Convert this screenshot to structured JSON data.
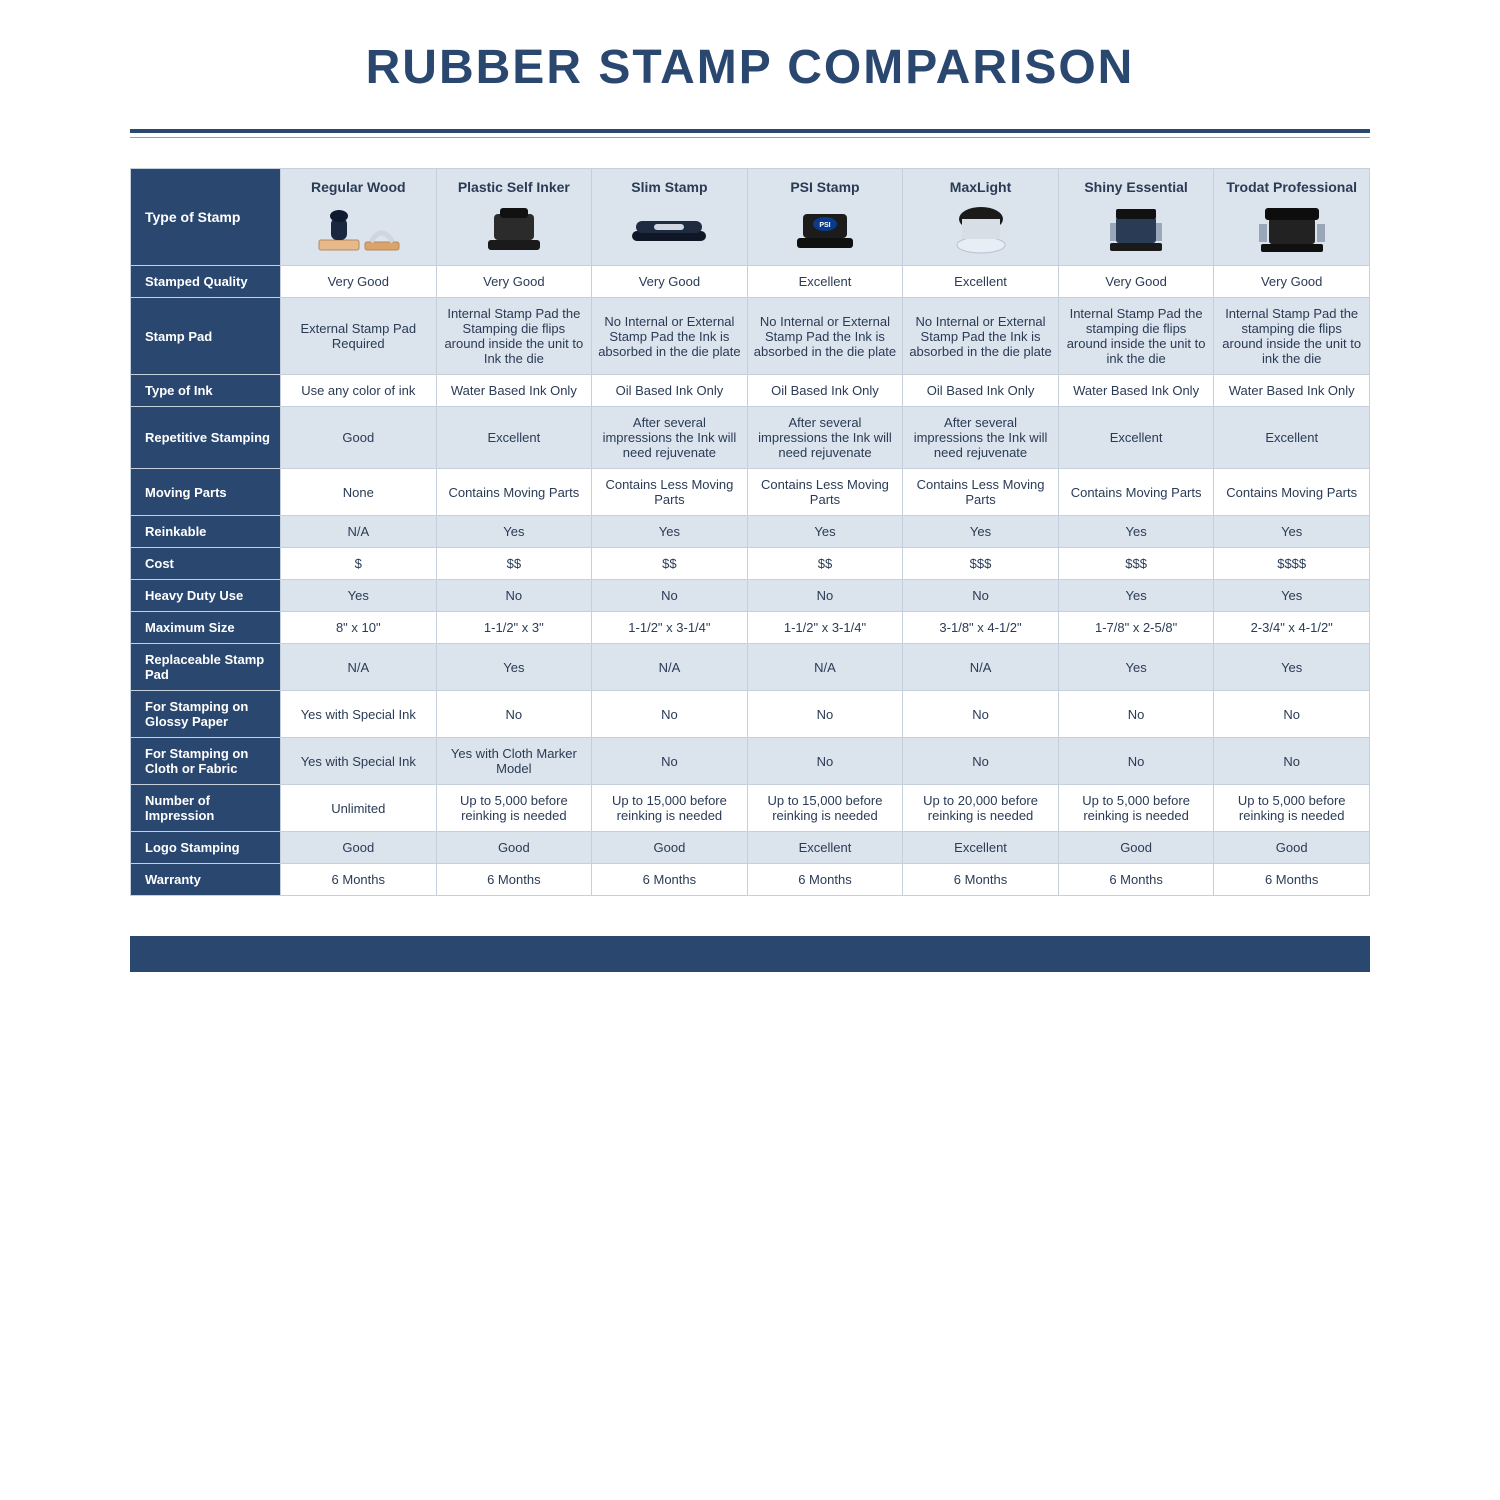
{
  "title": "RUBBER STAMP COMPARISON",
  "colors": {
    "brand": "#2a4770",
    "header_bg": "#dbe3ec",
    "border": "#c6d0dc",
    "text": "#2a3b55",
    "white": "#ffffff"
  },
  "table": {
    "corner_label": "Type of Stamp",
    "columns": [
      "Regular Wood",
      "Plastic Self Inker",
      "Slim Stamp",
      "PSI Stamp",
      "MaxLight",
      "Shiny Essential",
      "Trodat Professional"
    ],
    "rows": [
      {
        "label": "Stamped Quality",
        "shade": false,
        "cells": [
          "Very Good",
          "Very Good",
          "Very Good",
          "Excellent",
          "Excellent",
          "Very Good",
          "Very Good"
        ]
      },
      {
        "label": "Stamp Pad",
        "shade": true,
        "cells": [
          "External Stamp Pad Required",
          "Internal Stamp Pad the Stamping die flips around inside the unit to Ink the die",
          "No Internal or External Stamp Pad the Ink is absorbed in the die plate",
          "No Internal or External Stamp Pad the Ink is absorbed in the die plate",
          "No Internal or External Stamp Pad the Ink is absorbed in the die plate",
          "Internal Stamp Pad the stamping die flips around inside the unit to ink the die",
          "Internal Stamp Pad the stamping die flips around inside the unit to ink the die"
        ]
      },
      {
        "label": "Type of Ink",
        "shade": false,
        "cells": [
          "Use any color of ink",
          "Water Based Ink Only",
          "Oil Based Ink Only",
          "Oil Based Ink Only",
          "Oil Based Ink Only",
          "Water Based Ink Only",
          "Water Based Ink Only"
        ]
      },
      {
        "label": "Repetitive Stamping",
        "shade": true,
        "cells": [
          "Good",
          "Excellent",
          "After several impressions the Ink will need rejuvenate",
          "After several impressions the Ink will need rejuvenate",
          "After several impressions the Ink will need rejuvenate",
          "Excellent",
          "Excellent"
        ]
      },
      {
        "label": "Moving Parts",
        "shade": false,
        "cells": [
          "None",
          "Contains Moving Parts",
          "Contains Less Moving Parts",
          "Contains Less Moving Parts",
          "Contains Less Moving Parts",
          "Contains Moving Parts",
          "Contains Moving Parts"
        ]
      },
      {
        "label": "Reinkable",
        "shade": true,
        "cells": [
          "N/A",
          "Yes",
          "Yes",
          "Yes",
          "Yes",
          "Yes",
          "Yes"
        ]
      },
      {
        "label": "Cost",
        "shade": false,
        "cells": [
          "$",
          "$$",
          "$$",
          "$$",
          "$$$",
          "$$$",
          "$$$$"
        ]
      },
      {
        "label": "Heavy Duty Use",
        "shade": true,
        "cells": [
          "Yes",
          "No",
          "No",
          "No",
          "No",
          "Yes",
          "Yes"
        ]
      },
      {
        "label": "Maximum Size",
        "shade": false,
        "cells": [
          "8\" x 10\"",
          "1-1/2\" x 3\"",
          "1-1/2\" x 3-1/4\"",
          "1-1/2\" x 3-1/4\"",
          "3-1/8\" x 4-1/2\"",
          "1-7/8\" x 2-5/8\"",
          "2-3/4\" x 4-1/2\""
        ]
      },
      {
        "label": "Replaceable Stamp Pad",
        "shade": true,
        "cells": [
          "N/A",
          "Yes",
          "N/A",
          "N/A",
          "N/A",
          "Yes",
          "Yes"
        ]
      },
      {
        "label": "For Stamping on Glossy Paper",
        "shade": false,
        "cells": [
          "Yes with Special Ink",
          "No",
          "No",
          "No",
          "No",
          "No",
          "No"
        ]
      },
      {
        "label": "For Stamping on Cloth or Fabric",
        "shade": true,
        "cells": [
          "Yes with Special Ink",
          "Yes with Cloth Marker Model",
          "No",
          "No",
          "No",
          "No",
          "No"
        ]
      },
      {
        "label": "Number of Impression",
        "shade": false,
        "cells": [
          "Unlimited",
          "Up to 5,000 before reinking is needed",
          "Up to 15,000 before reinking is needed",
          "Up to 15,000 before reinking is needed",
          "Up to 20,000 before reinking is needed",
          "Up to 5,000 before reinking is needed",
          "Up to 5,000 before reinking is needed"
        ]
      },
      {
        "label": "Logo Stamping",
        "shade": true,
        "cells": [
          "Good",
          "Good",
          "Good",
          "Excellent",
          "Excellent",
          "Good",
          "Good"
        ]
      },
      {
        "label": "Warranty",
        "shade": false,
        "cells": [
          "6 Months",
          "6 Months",
          "6 Months",
          "6 Months",
          "6 Months",
          "6 Months",
          "6 Months"
        ]
      }
    ]
  }
}
